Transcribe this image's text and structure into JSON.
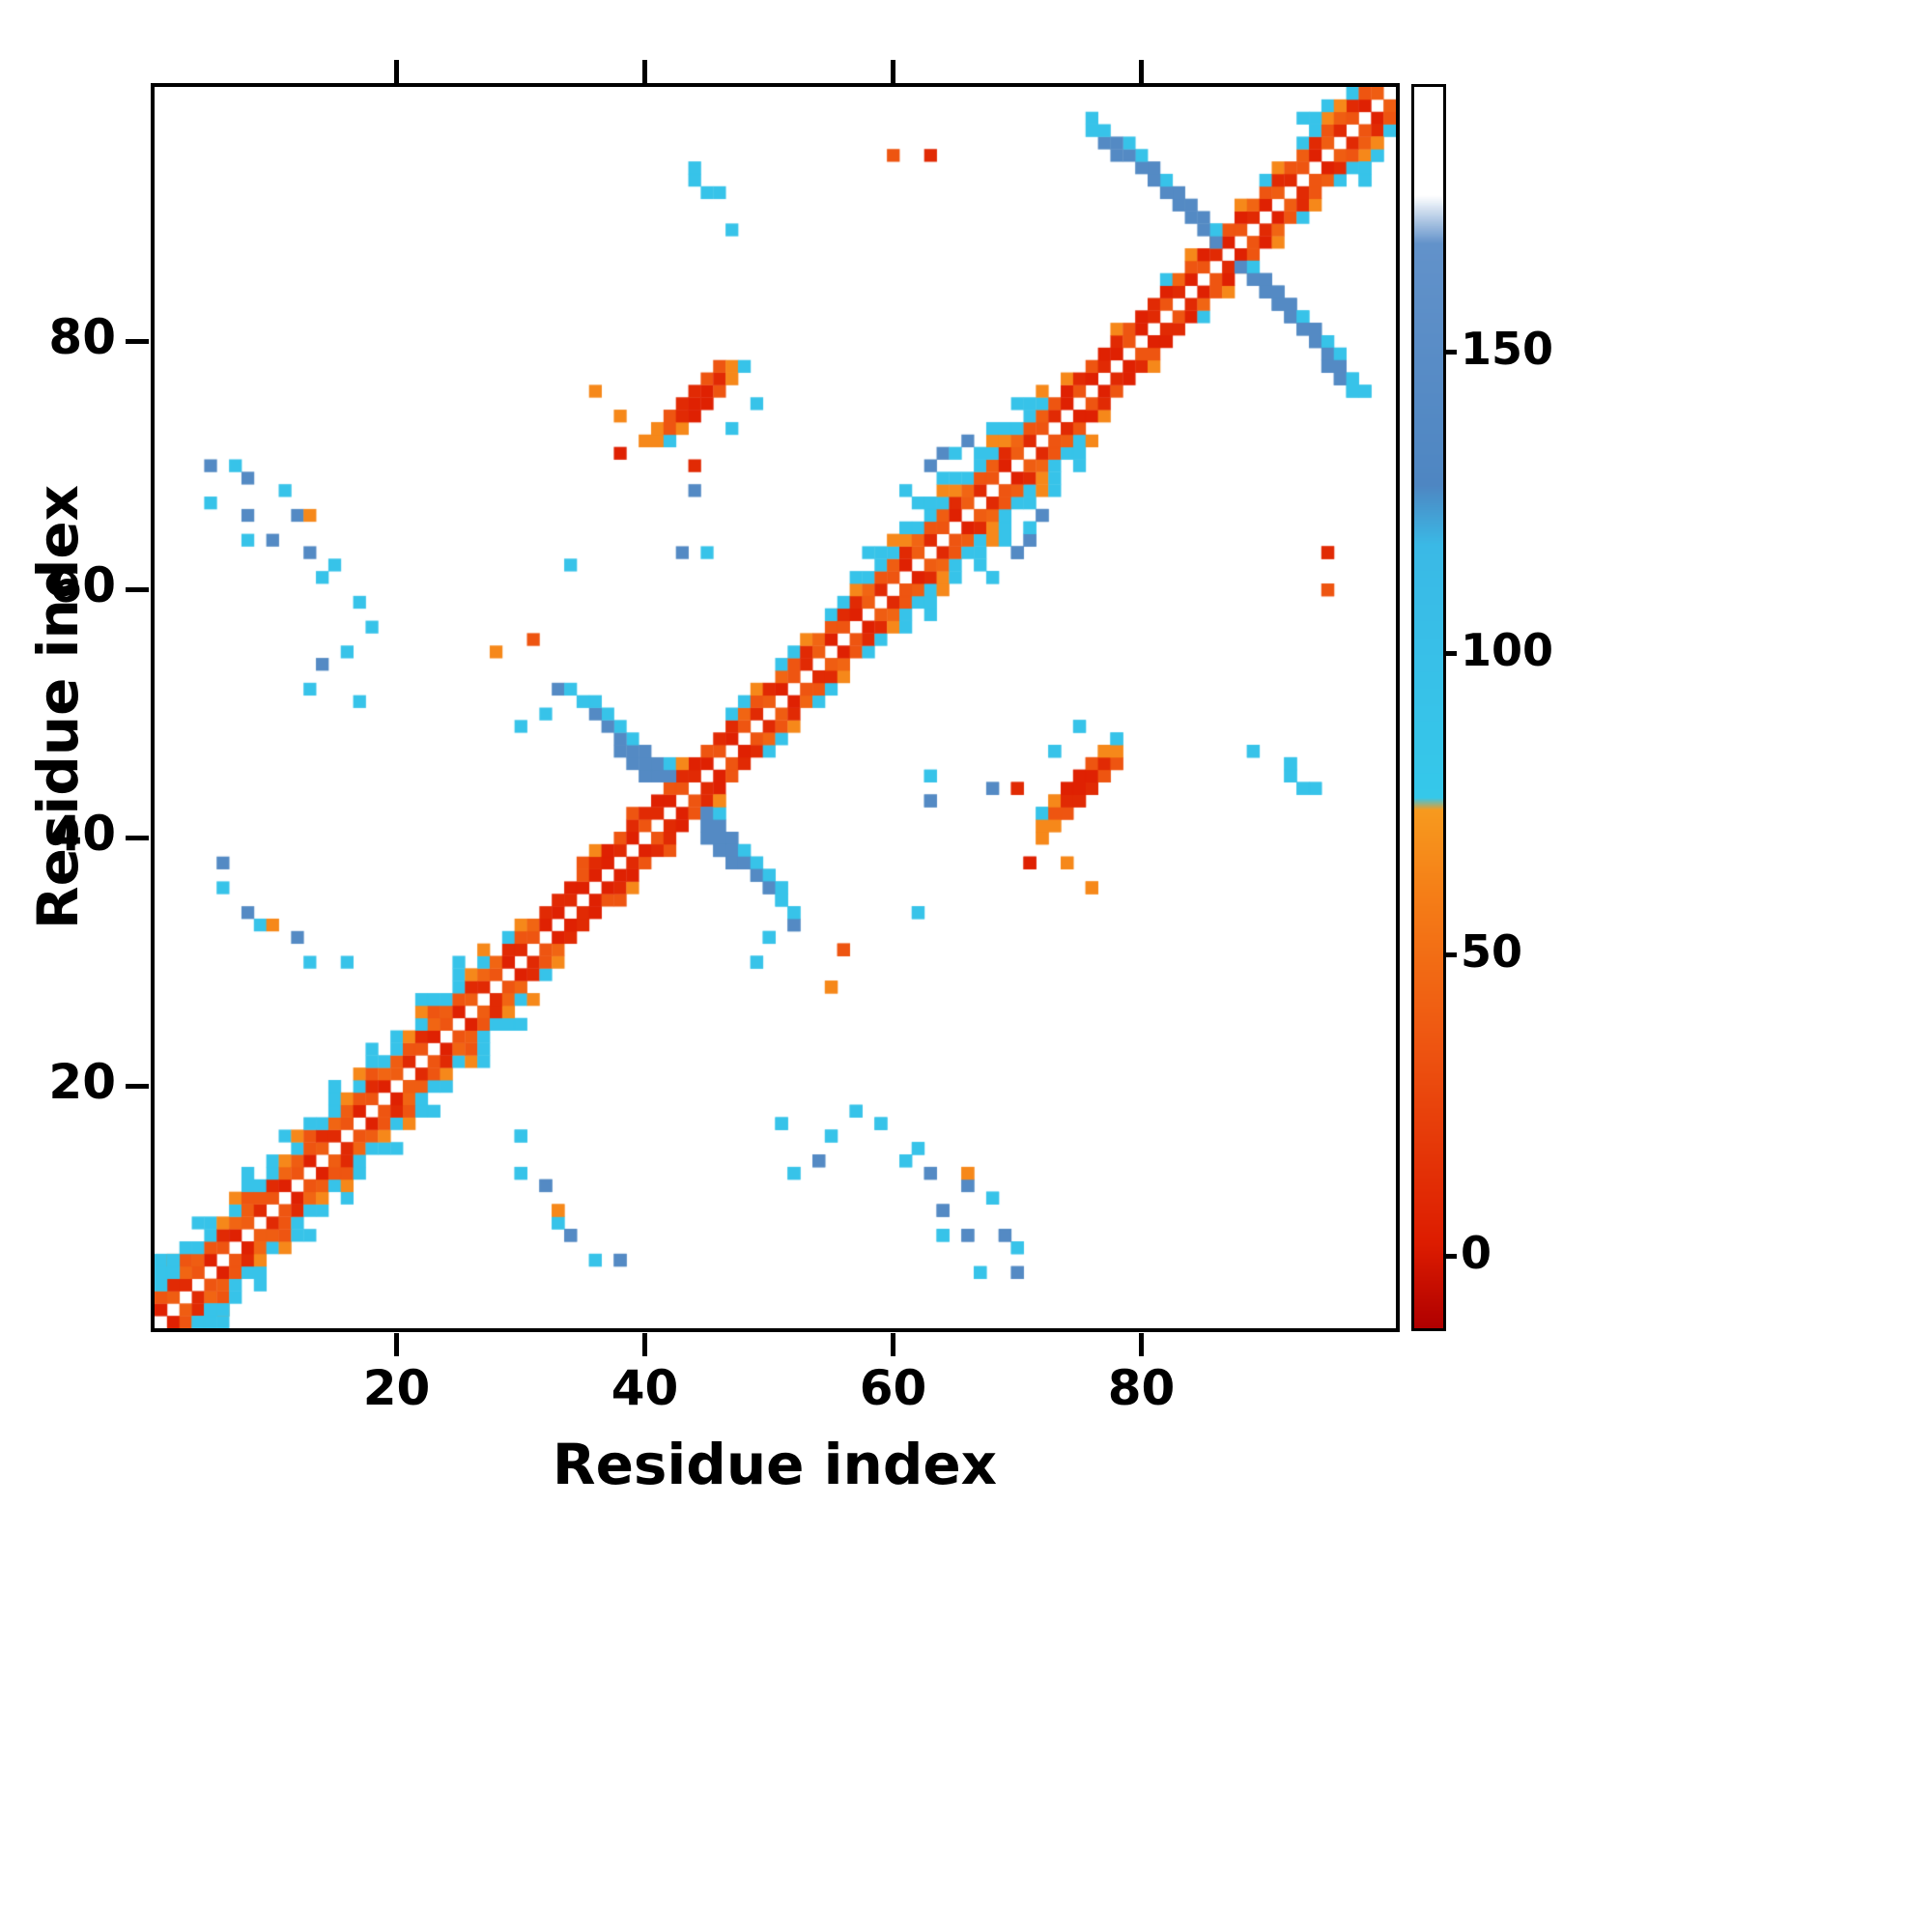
{
  "chart_data": {
    "type": "heatmap",
    "title": "",
    "xlabel": "Residue index",
    "ylabel": "Residue index",
    "n_residues": 100,
    "x_ticks": [
      20,
      40,
      60,
      80
    ],
    "y_ticks": [
      20,
      40,
      60,
      80
    ],
    "grid": false,
    "symmetric": true,
    "background_value_color": "#ffffff",
    "colorbar": {
      "domain": [
        -12,
        194
      ],
      "ticks": [
        0,
        50,
        100,
        150
      ],
      "stops": [
        {
          "v": -12,
          "c": "#b00000"
        },
        {
          "v": 2,
          "c": "#dd1c00"
        },
        {
          "v": 35,
          "c": "#ee5511"
        },
        {
          "v": 60,
          "c": "#f57e17"
        },
        {
          "v": 74,
          "c": "#f79a1e"
        },
        {
          "v": 76,
          "c": "#35c8ea"
        },
        {
          "v": 118,
          "c": "#3ab9e6"
        },
        {
          "v": 128,
          "c": "#4e86c2"
        },
        {
          "v": 168,
          "c": "#6292ca"
        },
        {
          "v": 176,
          "c": "#ffffff"
        },
        {
          "v": 194,
          "c": "#ffffff"
        }
      ]
    },
    "band_segments": [
      {
        "from": 1,
        "to": 27,
        "offsets": {
          "1": [
            35,
            5,
            40,
            10,
            35,
            5
          ],
          "2": [
            40,
            35,
            10,
            45
          ],
          "3": [
            90,
            65,
            90,
            35,
            90
          ],
          "4": [
            90,
            null,
            65,
            90,
            null
          ],
          "5": [
            null,
            90,
            null,
            null,
            90,
            null,
            null
          ]
        }
      },
      {
        "from": 28,
        "to": 32,
        "offsets": {
          "1": [
            10,
            35,
            5
          ],
          "2": [
            35,
            45,
            10
          ],
          "3": [
            null,
            90,
            65,
            null
          ]
        }
      },
      {
        "from": 33,
        "to": 39,
        "offsets": {
          "1": [
            5,
            5,
            10,
            5
          ],
          "2": [
            10,
            5,
            35
          ],
          "3": [
            65,
            null,
            null,
            35
          ]
        }
      },
      {
        "from": 40,
        "to": 46,
        "offsets": {
          "1": [
            5,
            35,
            10
          ],
          "2": [
            35,
            10,
            5
          ]
        }
      },
      {
        "from": 47,
        "to": 56,
        "offsets": {
          "1": [
            35,
            10,
            40,
            5
          ],
          "2": [
            45,
            35,
            10
          ],
          "3": [
            90,
            65,
            null,
            90
          ]
        }
      },
      {
        "from": 57,
        "to": 72,
        "offsets": {
          "1": [
            35,
            5,
            40,
            10
          ],
          "2": [
            40,
            10,
            45,
            35
          ],
          "3": [
            90,
            65,
            90,
            90
          ],
          "4": [
            65,
            90,
            null,
            90
          ],
          "5": [
            null,
            null,
            90,
            null,
            90,
            null
          ]
        }
      },
      {
        "from": 73,
        "to": 81,
        "offsets": {
          "1": [
            5,
            10,
            5,
            35
          ],
          "2": [
            10,
            35,
            5
          ],
          "3": [
            null,
            null,
            65,
            null
          ]
        }
      },
      {
        "from": 82,
        "to": 90,
        "offsets": {
          "1": [
            5,
            35,
            10
          ],
          "2": [
            35,
            5,
            45
          ],
          "3": [
            65,
            null,
            90,
            null
          ]
        }
      },
      {
        "from": 91,
        "to": 99,
        "offsets": {
          "1": [
            10,
            35,
            5,
            40
          ],
          "2": [
            40,
            10,
            35
          ],
          "3": [
            null,
            90,
            90,
            65
          ]
        }
      }
    ],
    "cells": [
      [
        1,
        4,
        90
      ],
      [
        1,
        5,
        90
      ],
      [
        2,
        5,
        90
      ],
      [
        2,
        6,
        90
      ],
      [
        6,
        38,
        140
      ],
      [
        6,
        36,
        90
      ],
      [
        8,
        34,
        140
      ],
      [
        9,
        33,
        90
      ],
      [
        12,
        32,
        140
      ],
      [
        10,
        33,
        65
      ],
      [
        13,
        30,
        90
      ],
      [
        16,
        30,
        90
      ],
      [
        5,
        70,
        140
      ],
      [
        7,
        70,
        90
      ],
      [
        8,
        69,
        140
      ],
      [
        5,
        67,
        90
      ],
      [
        8,
        66,
        140
      ],
      [
        11,
        68,
        90
      ],
      [
        12,
        66,
        140
      ],
      [
        8,
        64,
        90
      ],
      [
        13,
        66,
        65
      ],
      [
        10,
        64,
        140
      ],
      [
        13,
        63,
        140
      ],
      [
        15,
        62,
        90
      ],
      [
        14,
        61,
        90
      ],
      [
        17,
        59,
        90
      ],
      [
        18,
        57,
        90
      ],
      [
        17,
        51,
        90
      ],
      [
        13,
        52,
        90
      ],
      [
        14,
        54,
        140
      ],
      [
        16,
        55,
        90
      ],
      [
        28,
        55,
        65
      ],
      [
        31,
        56,
        35
      ],
      [
        30,
        49,
        90
      ],
      [
        32,
        50,
        90
      ],
      [
        33,
        52,
        140
      ],
      [
        34,
        62,
        90
      ],
      [
        42,
        45,
        140
      ],
      [
        41,
        45,
        140
      ],
      [
        41,
        46,
        140
      ],
      [
        40,
        45,
        140
      ],
      [
        40,
        46,
        140
      ],
      [
        40,
        47,
        140
      ],
      [
        39,
        46,
        140
      ],
      [
        39,
        47,
        140
      ],
      [
        39,
        48,
        90
      ],
      [
        38,
        47,
        140
      ],
      [
        38,
        48,
        140
      ],
      [
        38,
        49,
        90
      ],
      [
        37,
        49,
        140
      ],
      [
        37,
        50,
        90
      ],
      [
        36,
        50,
        140
      ],
      [
        36,
        51,
        90
      ],
      [
        35,
        51,
        90
      ],
      [
        34,
        52,
        90
      ],
      [
        42,
        46,
        90
      ],
      [
        43,
        46,
        65
      ],
      [
        40,
        72,
        65
      ],
      [
        41,
        72,
        65
      ],
      [
        41,
        73,
        65
      ],
      [
        42,
        72,
        90
      ],
      [
        42,
        73,
        35
      ],
      [
        42,
        74,
        35
      ],
      [
        43,
        73,
        65
      ],
      [
        43,
        74,
        10
      ],
      [
        43,
        75,
        10
      ],
      [
        44,
        74,
        5
      ],
      [
        44,
        75,
        5
      ],
      [
        44,
        76,
        10
      ],
      [
        45,
        75,
        5
      ],
      [
        45,
        76,
        5
      ],
      [
        45,
        77,
        35
      ],
      [
        46,
        76,
        35
      ],
      [
        46,
        77,
        10
      ],
      [
        46,
        78,
        35
      ],
      [
        47,
        77,
        65
      ],
      [
        47,
        78,
        65
      ],
      [
        48,
        78,
        90
      ],
      [
        38,
        74,
        65
      ],
      [
        36,
        76,
        65
      ],
      [
        38,
        71,
        5
      ],
      [
        43,
        63,
        140
      ],
      [
        45,
        63,
        90
      ],
      [
        44,
        68,
        140
      ],
      [
        47,
        73,
        90
      ],
      [
        49,
        75,
        90
      ],
      [
        44,
        70,
        10
      ],
      [
        61,
        68,
        90
      ],
      [
        63,
        70,
        140
      ],
      [
        64,
        71,
        140
      ],
      [
        65,
        71,
        90
      ],
      [
        66,
        72,
        140
      ],
      [
        44,
        93,
        90
      ],
      [
        45,
        92,
        90
      ],
      [
        46,
        92,
        90
      ],
      [
        44,
        94,
        90
      ],
      [
        47,
        89,
        90
      ],
      [
        60,
        95,
        35
      ],
      [
        63,
        95,
        10
      ],
      [
        86,
        88,
        140
      ],
      [
        86,
        89,
        90
      ],
      [
        85,
        89,
        140
      ],
      [
        85,
        90,
        140
      ],
      [
        84,
        90,
        140
      ],
      [
        84,
        91,
        140
      ],
      [
        83,
        91,
        140
      ],
      [
        83,
        92,
        140
      ],
      [
        82,
        92,
        140
      ],
      [
        82,
        93,
        90
      ],
      [
        81,
        93,
        140
      ],
      [
        81,
        94,
        140
      ],
      [
        80,
        94,
        140
      ],
      [
        80,
        95,
        90
      ],
      [
        79,
        95,
        140
      ],
      [
        78,
        95,
        140
      ],
      [
        79,
        96,
        90
      ],
      [
        78,
        96,
        140
      ],
      [
        77,
        96,
        140
      ],
      [
        77,
        97,
        90
      ],
      [
        76,
        97,
        90
      ],
      [
        76,
        98,
        90
      ],
      [
        93,
        98,
        90
      ],
      [
        94,
        98,
        90
      ],
      [
        95,
        99,
        90
      ],
      [
        96,
        99,
        65
      ]
    ]
  }
}
